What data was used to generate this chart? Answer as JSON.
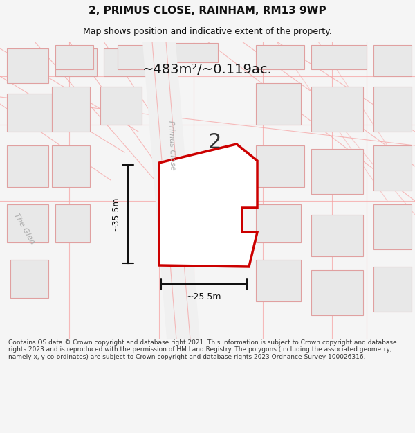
{
  "title_line1": "2, PRIMUS CLOSE, RAINHAM, RM13 9WP",
  "title_line2": "Map shows position and indicative extent of the property.",
  "area_label": "~483m²/~0.119ac.",
  "dim_h": "~25.5m",
  "dim_v": "~35.5m",
  "number_label": "2",
  "street_label": "Primus Close",
  "street_label2": "The Glen",
  "copyright_text": "Contains OS data © Crown copyright and database right 2021. This information is subject to Crown copyright and database rights 2023 and is reproduced with the permission of HM Land Registry. The polygons (including the associated geometry, namely x, y co-ordinates) are subject to Crown copyright and database rights 2023 Ordnance Survey 100026316.",
  "bg_color": "#f5f5f5",
  "map_bg": "#ffffff",
  "road_color": "#f5a0a0",
  "building_color": "#e8e8e8",
  "building_outline": "#e0a0a0",
  "red_polygon_color": "#cc0000",
  "dim_line_color": "#111111",
  "title_color": "#111111",
  "copyright_color": "#333333",
  "area_label_color": "#111111",
  "fig_width": 6.0,
  "fig_height": 6.25
}
